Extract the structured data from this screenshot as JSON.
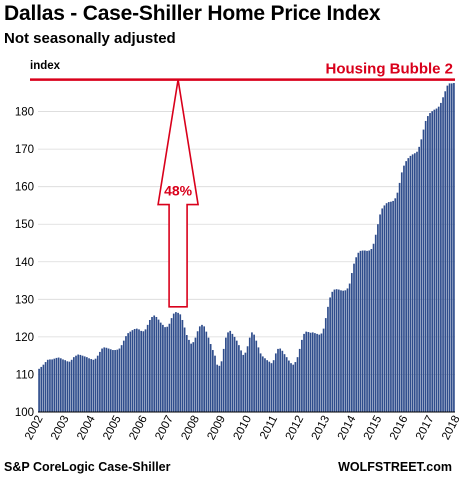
{
  "header": {
    "title": "Dallas - Case-Shiller Home Price Index",
    "subtitle": "Not seasonally adjusted"
  },
  "footer": {
    "source": "S&P CoreLogic Case-Shiller",
    "brand": "WOLFSTREET.com"
  },
  "chart_data": {
    "type": "bar",
    "ylabel": "index",
    "ylim": [
      100,
      190
    ],
    "yticks": [
      100,
      110,
      120,
      130,
      140,
      150,
      160,
      170,
      180
    ],
    "xticks": [
      "2002",
      "2003",
      "2004",
      "2005",
      "2006",
      "2007",
      "2008",
      "2009",
      "2010",
      "2011",
      "2012",
      "2013",
      "2014",
      "2015",
      "2016",
      "2017",
      "2018"
    ],
    "x_start": "2002-01",
    "frequency": "monthly",
    "grid": "horizontal",
    "reference_line": {
      "label": "Housing Bubble 2",
      "value": 188.5,
      "color": "#d9001b"
    },
    "annotation": {
      "label": "48%",
      "color": "#d9001b",
      "from_value": 128,
      "to_value": 188.5,
      "x": "2007-05"
    },
    "bar_color": "#2f4d8c",
    "values": [
      111.5,
      112.0,
      112.6,
      113.3,
      113.9,
      114.0,
      114.0,
      114.2,
      114.4,
      114.5,
      114.3,
      114.0,
      113.8,
      113.5,
      113.4,
      113.9,
      114.6,
      115.0,
      115.3,
      115.2,
      115.0,
      114.8,
      114.6,
      114.3,
      114.1,
      113.9,
      114.2,
      115.0,
      116.0,
      116.9,
      117.2,
      117.1,
      116.9,
      116.7,
      116.5,
      116.5,
      116.6,
      116.9,
      117.8,
      119.0,
      120.2,
      121.0,
      121.4,
      121.8,
      122.1,
      122.2,
      122.0,
      121.6,
      121.5,
      122.0,
      123.2,
      124.5,
      125.3,
      125.7,
      125.3,
      124.6,
      123.8,
      123.2,
      122.6,
      122.7,
      123.5,
      125.0,
      126.2,
      126.6,
      126.4,
      126.0,
      124.5,
      122.5,
      120.5,
      119.2,
      118.2,
      118.6,
      119.8,
      121.5,
      122.8,
      123.2,
      122.8,
      121.4,
      119.8,
      118.1,
      116.5,
      115.0,
      112.6,
      112.3,
      113.5,
      116.8,
      119.8,
      121.2,
      121.6,
      120.8,
      120.0,
      119.0,
      117.8,
      116.4,
      115.2,
      115.8,
      117.5,
      119.8,
      121.2,
      120.6,
      119.0,
      117.2,
      115.6,
      114.8,
      114.3,
      113.8,
      113.4,
      113.0,
      113.8,
      115.6,
      116.8,
      116.9,
      116.3,
      115.4,
      114.6,
      113.7,
      113.0,
      112.6,
      113.3,
      114.6,
      116.8,
      119.2,
      120.8,
      121.4,
      121.3,
      121.1,
      121.2,
      121.0,
      120.8,
      120.6,
      120.9,
      122.2,
      125.0,
      128.0,
      130.5,
      132.0,
      132.6,
      132.7,
      132.6,
      132.4,
      132.3,
      132.4,
      132.9,
      134.2,
      137.0,
      139.5,
      141.2,
      142.4,
      142.9,
      143.0,
      143.0,
      142.9,
      143.0,
      143.4,
      144.8,
      147.2,
      150.0,
      152.6,
      154.2,
      155.0,
      155.6,
      155.9,
      156.0,
      156.2,
      156.9,
      158.4,
      161.0,
      163.8,
      165.6,
      166.8,
      167.6,
      168.2,
      168.6,
      168.9,
      169.3,
      170.6,
      172.6,
      175.2,
      177.5,
      178.8,
      179.6,
      180.1,
      180.5,
      180.8,
      181.3,
      182.3,
      183.8,
      185.4,
      186.9,
      187.5,
      187.5,
      187.6
    ]
  }
}
